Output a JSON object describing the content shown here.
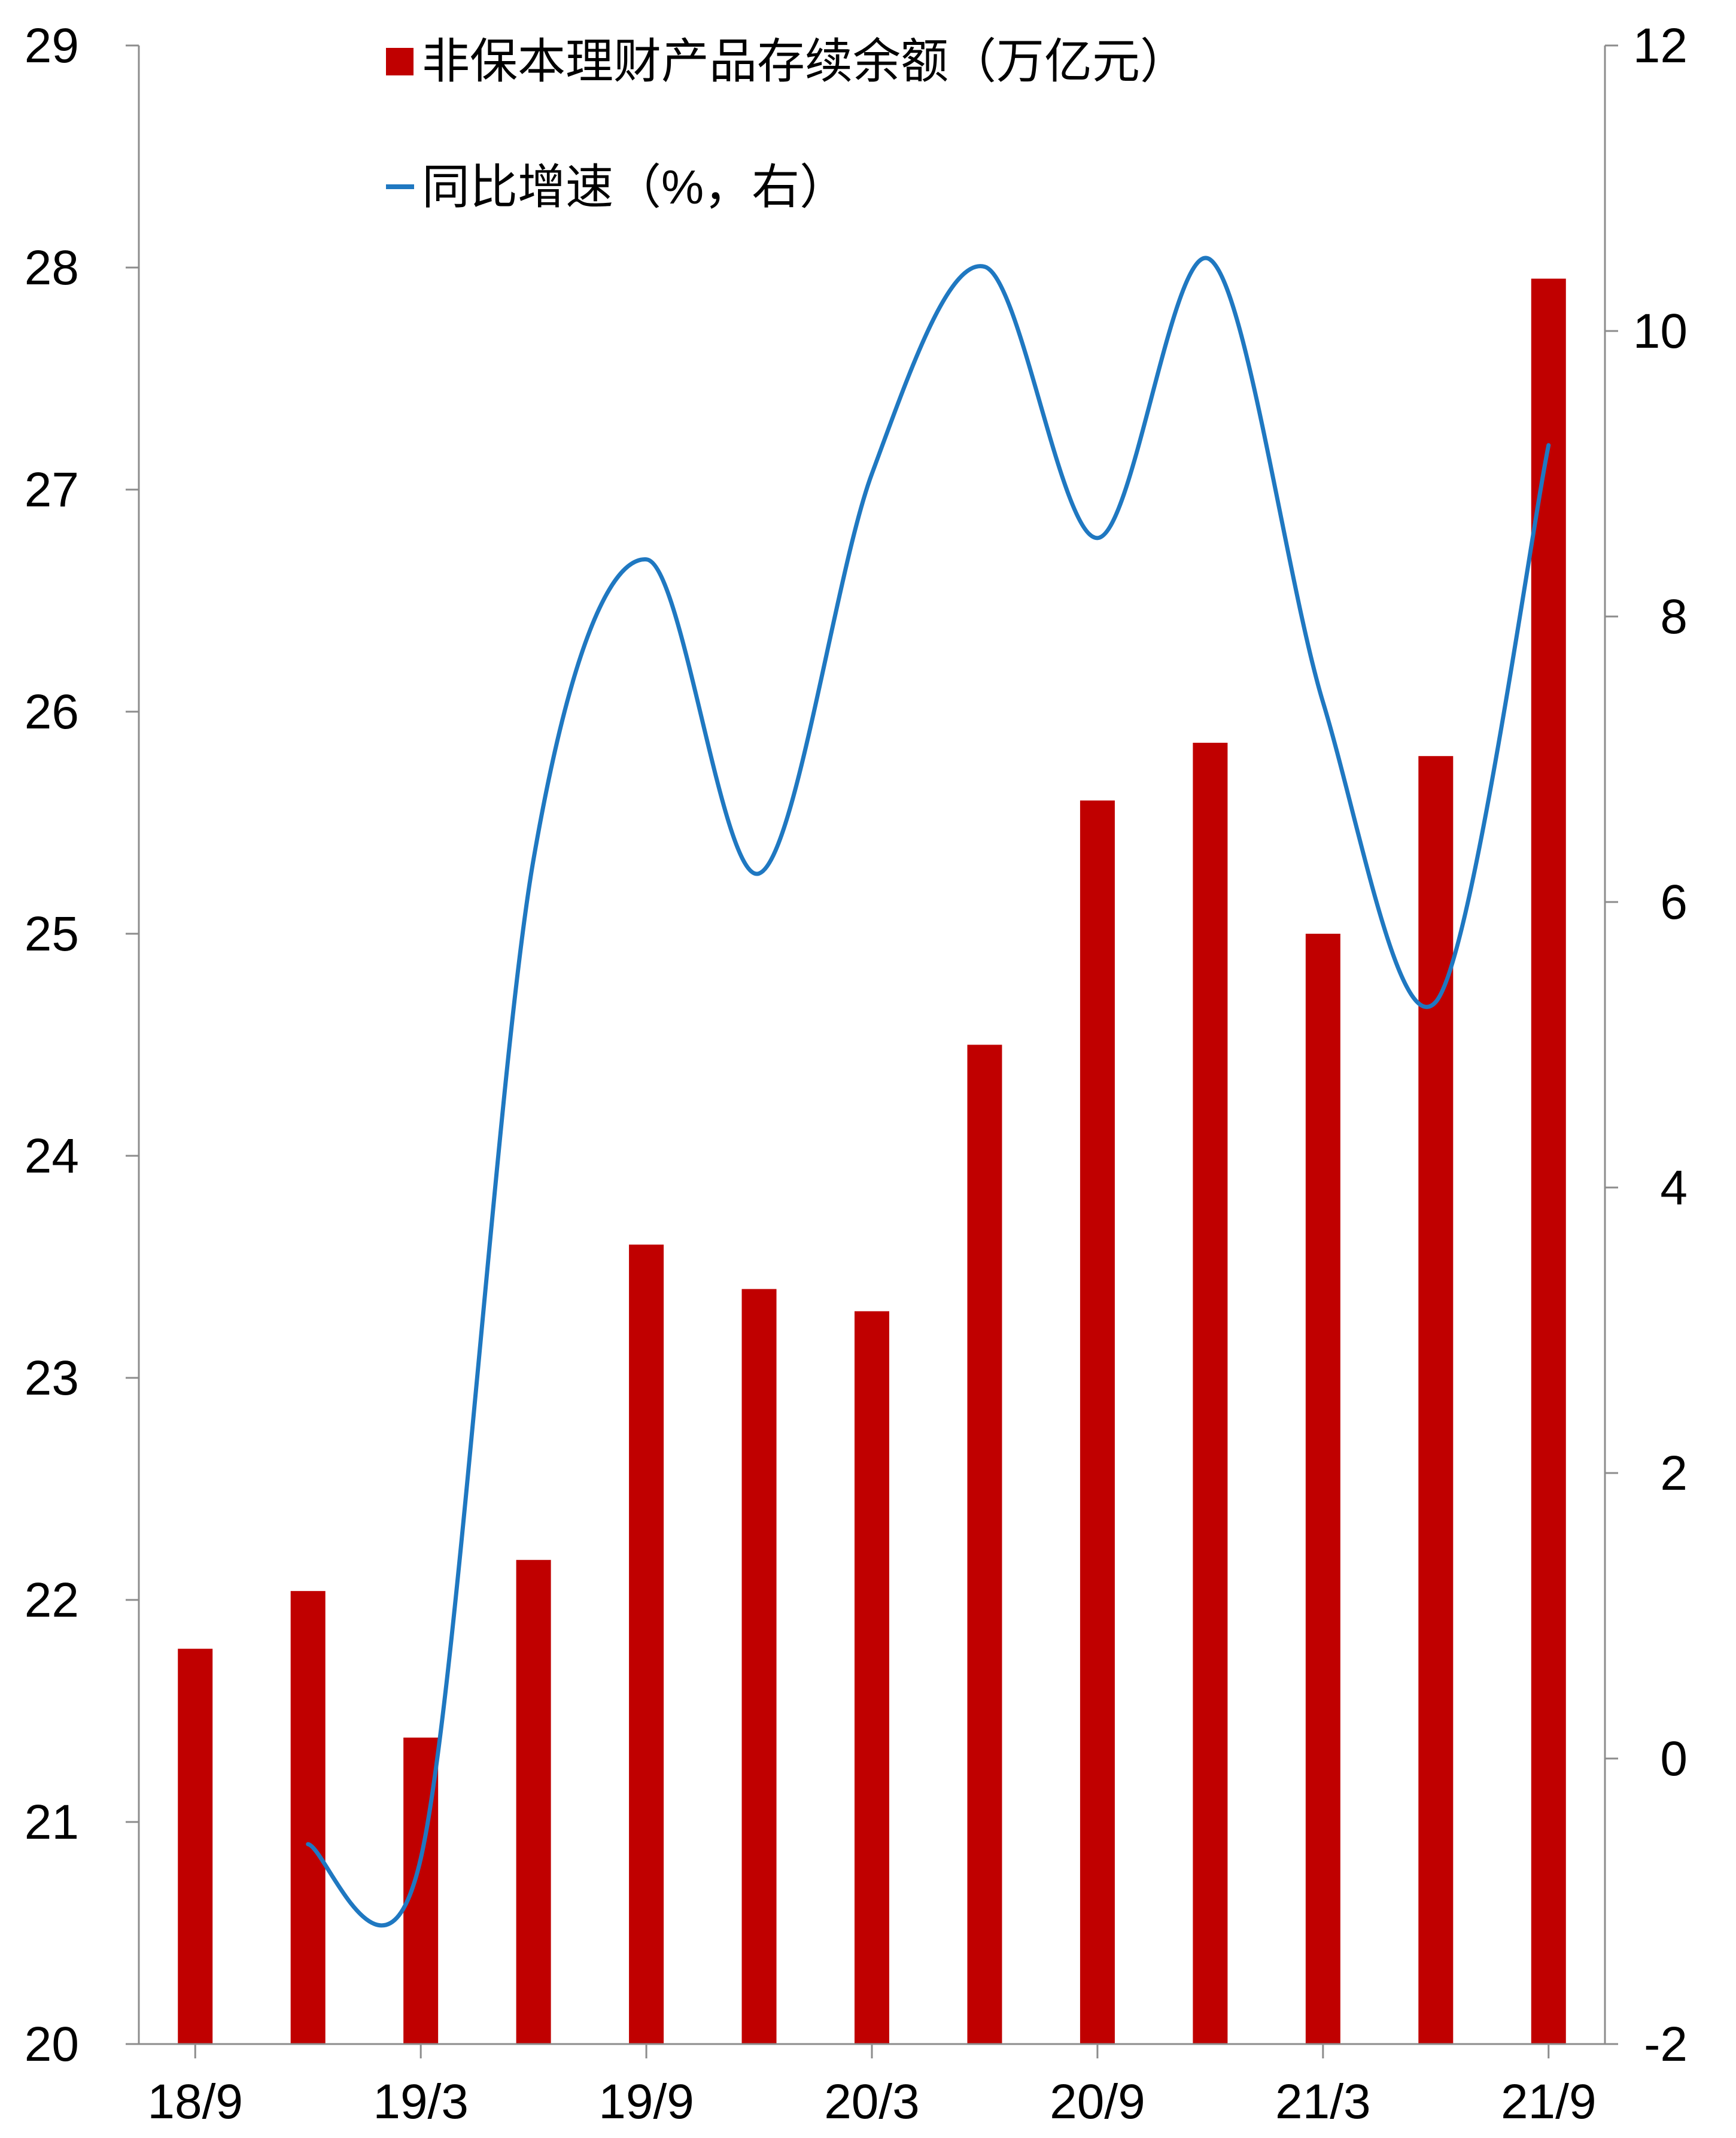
{
  "chart_data": {
    "type": "bar+line",
    "categories": [
      "18/9",
      "18/12",
      "19/3",
      "19/6",
      "19/9",
      "19/12",
      "20/3",
      "20/6",
      "20/9",
      "20/12",
      "21/3",
      "21/6",
      "21/9"
    ],
    "x_tick_labels": [
      "18/9",
      "19/3",
      "19/9",
      "20/3",
      "20/9",
      "21/3",
      "21/9"
    ],
    "series": [
      {
        "name": "非保本理财产品存续余额（万亿元）",
        "type": "bar",
        "axis": "left",
        "color": "#C00000",
        "values": [
          21.78,
          22.04,
          21.38,
          22.18,
          23.6,
          23.4,
          23.3,
          24.5,
          25.6,
          25.86,
          25.0,
          25.8,
          27.95
        ]
      },
      {
        "name": "同比增速（%，右）",
        "type": "line",
        "axis": "right",
        "color": "#1F78C1",
        "values": [
          null,
          -0.6,
          -0.7,
          6.3,
          8.4,
          6.2,
          9.0,
          10.45,
          8.55,
          10.5,
          7.4,
          5.3,
          9.2
        ]
      }
    ],
    "y_left": {
      "ticks": [
        20,
        21,
        22,
        23,
        24,
        25,
        26,
        27,
        28,
        29
      ],
      "ylim": [
        20,
        29
      ]
    },
    "y_right": {
      "ticks": [
        -2,
        0,
        2,
        4,
        6,
        8,
        10,
        12
      ],
      "ylim": [
        -2,
        12
      ]
    },
    "legend_position": "top-center",
    "grid": false
  }
}
